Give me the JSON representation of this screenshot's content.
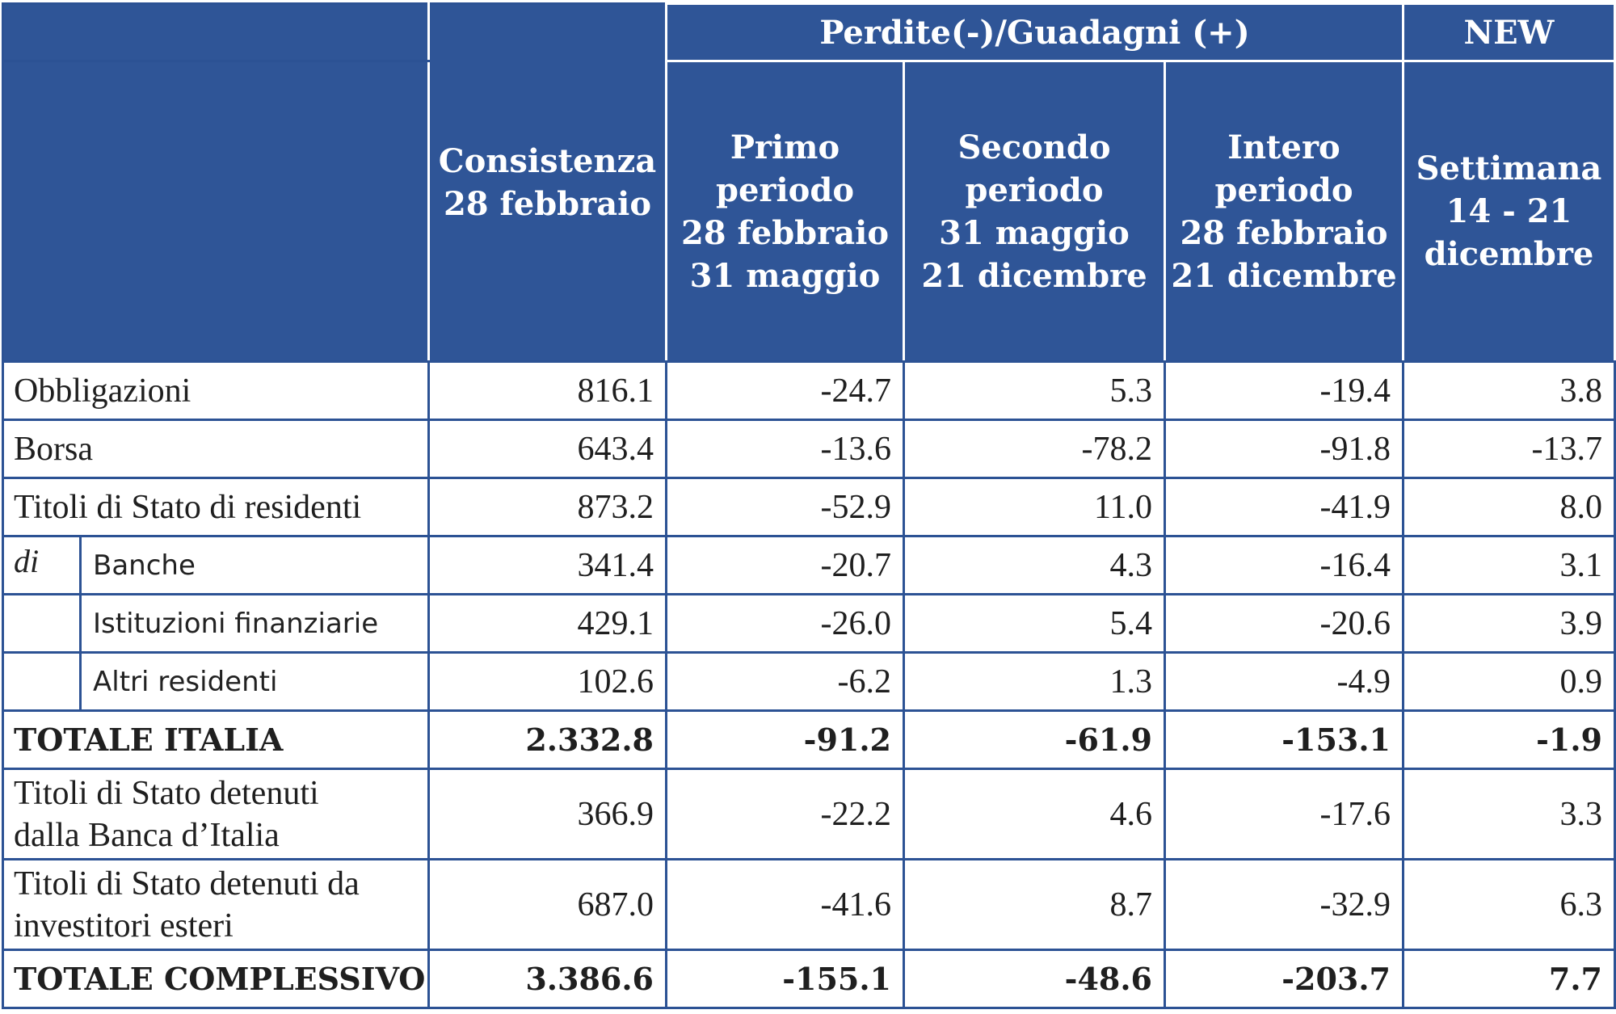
{
  "header": {
    "group_label": "Perdite(-)/Guadagni (+)",
    "new_label": "NEW",
    "columns": {
      "consistenza": [
        "Consistenza",
        "28 febbraio"
      ],
      "primo": [
        "Primo",
        "periodo",
        "28 febbraio",
        "31 maggio"
      ],
      "secondo": [
        "Secondo",
        "periodo",
        "31 maggio",
        "21 dicembre"
      ],
      "intero": [
        "Intero",
        "periodo",
        "28 febbraio",
        "21 dicembre"
      ],
      "settimana": [
        "Settimana",
        "14 - 21",
        "dicembre"
      ]
    }
  },
  "di_label": "di",
  "rows": [
    {
      "label": [
        "Obbligazioni"
      ],
      "values": [
        "816.1",
        "-24.7",
        "5.3",
        "-19.4",
        "3.8"
      ]
    },
    {
      "label": [
        "Borsa"
      ],
      "values": [
        "643.4",
        "-13.6",
        "-78.2",
        "-91.8",
        "-13.7"
      ]
    },
    {
      "label": [
        "Titoli di Stato di residenti"
      ],
      "values": [
        "873.2",
        "-52.9",
        "11.0",
        "-41.9",
        "8.0"
      ]
    },
    {
      "label": [
        "Banche"
      ],
      "values": [
        "341.4",
        "-20.7",
        "4.3",
        "-16.4",
        "3.1"
      ]
    },
    {
      "label": [
        "Istituzioni finanziarie"
      ],
      "values": [
        "429.1",
        "-26.0",
        "5.4",
        "-20.6",
        "3.9"
      ]
    },
    {
      "label": [
        "Altri residenti"
      ],
      "values": [
        "102.6",
        "-6.2",
        "1.3",
        "-4.9",
        "0.9"
      ]
    },
    {
      "label": [
        "TOTALE ITALIA"
      ],
      "values": [
        "2.332.8",
        "-91.2",
        "-61.9",
        "-153.1",
        "-1.9"
      ]
    },
    {
      "label": [
        "Titoli di Stato detenuti",
        "dalla Banca d’Italia"
      ],
      "values": [
        "366.9",
        "-22.2",
        "4.6",
        "-17.6",
        "3.3"
      ]
    },
    {
      "label": [
        "Titoli di Stato detenuti da",
        "investitori esteri"
      ],
      "values": [
        "687.0",
        "-41.6",
        "8.7",
        "-32.9",
        "6.3"
      ]
    },
    {
      "label": [
        "TOTALE COMPLESSIVO"
      ],
      "values": [
        "3.386.6",
        "-155.1",
        "-48.6",
        "-203.7",
        "7.7"
      ]
    }
  ]
}
